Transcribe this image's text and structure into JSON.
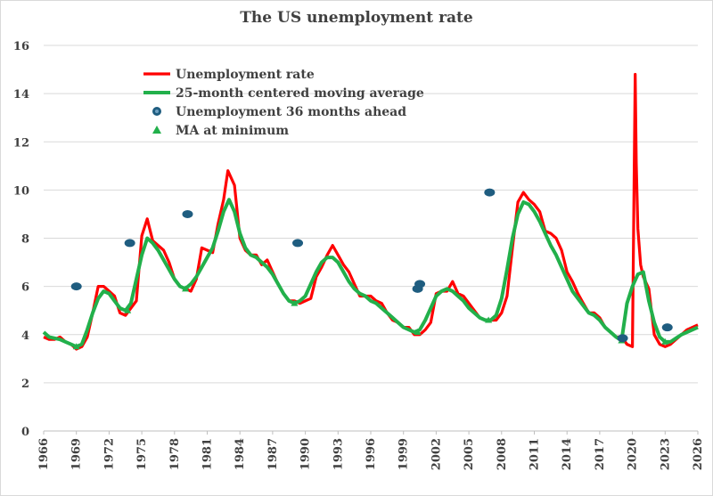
{
  "chart_data": {
    "type": "line",
    "title": "The US unemployment rate",
    "xlabel": "",
    "ylabel": "",
    "xlim": [
      1966,
      2026
    ],
    "ylim": [
      0,
      16
    ],
    "y_ticks": [
      0,
      2,
      4,
      6,
      8,
      10,
      12,
      14,
      16
    ],
    "x_ticks": [
      1966,
      1969,
      1972,
      1975,
      1978,
      1981,
      1984,
      1987,
      1990,
      1993,
      1996,
      1999,
      2002,
      2005,
      2008,
      2011,
      2014,
      2017,
      2020,
      2023,
      2026
    ],
    "grid": "horizontal",
    "legend_position": "top-left",
    "colors": {
      "unemployment": "#ff0000",
      "moving_average": "#22b04b",
      "ahead": "#1f5d80",
      "ma_min": "#22b04b"
    },
    "series": [
      {
        "name": "Unemployment rate",
        "kind": "line",
        "x": [
          1966.0,
          1966.5,
          1967.0,
          1967.5,
          1968.0,
          1968.5,
          1969.0,
          1969.5,
          1970.0,
          1970.5,
          1971.0,
          1971.5,
          1972.0,
          1972.5,
          1973.0,
          1973.5,
          1974.0,
          1974.5,
          1975.0,
          1975.5,
          1976.0,
          1976.5,
          1977.0,
          1977.5,
          1978.0,
          1978.5,
          1979.0,
          1979.5,
          1980.0,
          1980.5,
          1981.0,
          1981.5,
          1982.0,
          1982.5,
          1982.9,
          1983.5,
          1984.0,
          1984.5,
          1985.0,
          1985.5,
          1986.0,
          1986.5,
          1987.0,
          1987.5,
          1988.0,
          1988.5,
          1989.0,
          1989.5,
          1990.0,
          1990.5,
          1991.0,
          1991.5,
          1992.0,
          1992.5,
          1993.0,
          1993.5,
          1994.0,
          1994.5,
          1995.0,
          1995.5,
          1996.0,
          1996.5,
          1997.0,
          1997.5,
          1998.0,
          1998.5,
          1999.0,
          1999.5,
          2000.0,
          2000.5,
          2001.0,
          2001.5,
          2002.0,
          2002.5,
          2003.0,
          2003.5,
          2004.0,
          2004.5,
          2005.0,
          2005.5,
          2006.0,
          2006.5,
          2007.0,
          2007.5,
          2008.0,
          2008.5,
          2009.0,
          2009.5,
          2010.0,
          2010.5,
          2011.0,
          2011.5,
          2012.0,
          2012.5,
          2013.0,
          2013.5,
          2014.0,
          2014.5,
          2015.0,
          2015.5,
          2016.0,
          2016.5,
          2017.0,
          2017.5,
          2018.0,
          2018.5,
          2019.0,
          2019.5,
          2020.0,
          2020.25,
          2020.35,
          2020.5,
          2020.75,
          2021.0,
          2021.5,
          2022.0,
          2022.5,
          2023.0,
          2023.5,
          2024.0,
          2024.5,
          2025.0,
          2025.5,
          2026.0
        ],
        "values": [
          3.9,
          3.8,
          3.8,
          3.9,
          3.7,
          3.6,
          3.4,
          3.5,
          3.9,
          4.9,
          6.0,
          6.0,
          5.8,
          5.6,
          4.9,
          4.8,
          5.1,
          5.4,
          8.1,
          8.8,
          7.9,
          7.7,
          7.5,
          7.0,
          6.3,
          6.0,
          5.9,
          5.8,
          6.3,
          7.6,
          7.5,
          7.4,
          8.6,
          9.6,
          10.8,
          10.2,
          8.0,
          7.5,
          7.3,
          7.3,
          6.9,
          7.1,
          6.6,
          6.1,
          5.7,
          5.4,
          5.4,
          5.3,
          5.4,
          5.5,
          6.4,
          6.8,
          7.3,
          7.7,
          7.3,
          6.9,
          6.6,
          6.1,
          5.6,
          5.6,
          5.6,
          5.4,
          5.3,
          4.9,
          4.6,
          4.5,
          4.3,
          4.3,
          4.0,
          4.0,
          4.2,
          4.5,
          5.7,
          5.8,
          5.8,
          6.2,
          5.7,
          5.6,
          5.3,
          5.0,
          4.7,
          4.6,
          4.6,
          4.6,
          4.9,
          5.6,
          7.6,
          9.5,
          9.9,
          9.6,
          9.4,
          9.1,
          8.3,
          8.2,
          8.0,
          7.5,
          6.6,
          6.2,
          5.7,
          5.3,
          4.9,
          4.9,
          4.7,
          4.3,
          4.1,
          3.9,
          3.9,
          3.6,
          3.5,
          14.8,
          11.1,
          8.4,
          6.9,
          6.4,
          5.9,
          4.0,
          3.6,
          3.5,
          3.6,
          3.8,
          4.0,
          4.2,
          4.3,
          4.4
        ]
      },
      {
        "name": "25-month centered moving average",
        "kind": "line",
        "x": [
          1966.0,
          1966.5,
          1967.0,
          1967.5,
          1968.0,
          1968.5,
          1969.0,
          1969.5,
          1970.0,
          1970.5,
          1971.0,
          1971.5,
          1972.0,
          1972.5,
          1973.0,
          1973.5,
          1974.0,
          1974.5,
          1975.0,
          1975.5,
          1976.0,
          1976.5,
          1977.0,
          1977.5,
          1978.0,
          1978.5,
          1979.0,
          1979.5,
          1980.0,
          1980.5,
          1981.0,
          1981.5,
          1982.0,
          1982.5,
          1983.0,
          1983.5,
          1984.0,
          1984.5,
          1985.0,
          1985.5,
          1986.0,
          1986.5,
          1987.0,
          1987.5,
          1988.0,
          1988.5,
          1989.0,
          1989.5,
          1990.0,
          1990.5,
          1991.0,
          1991.5,
          1992.0,
          1992.5,
          1993.0,
          1993.5,
          1994.0,
          1994.5,
          1995.0,
          1995.5,
          1996.0,
          1996.5,
          1997.0,
          1997.5,
          1998.0,
          1998.5,
          1999.0,
          1999.5,
          2000.0,
          2000.5,
          2001.0,
          2001.5,
          2002.0,
          2002.5,
          2003.0,
          2003.5,
          2004.0,
          2004.5,
          2005.0,
          2005.5,
          2006.0,
          2006.5,
          2007.0,
          2007.5,
          2008.0,
          2008.5,
          2009.0,
          2009.5,
          2010.0,
          2010.5,
          2011.0,
          2011.5,
          2012.0,
          2012.5,
          2013.0,
          2013.5,
          2014.0,
          2014.5,
          2015.0,
          2015.5,
          2016.0,
          2016.5,
          2017.0,
          2017.5,
          2018.0,
          2018.5,
          2019.0,
          2019.5,
          2020.0,
          2020.5,
          2021.0,
          2021.5,
          2022.0,
          2022.5,
          2023.0,
          2023.5,
          2024.0,
          2024.5,
          2025.0,
          2025.5,
          2026.0
        ],
        "values": [
          4.1,
          3.9,
          3.85,
          3.8,
          3.7,
          3.6,
          3.5,
          3.6,
          4.2,
          4.9,
          5.5,
          5.8,
          5.7,
          5.4,
          5.1,
          5.0,
          5.3,
          6.3,
          7.3,
          8.0,
          7.8,
          7.5,
          7.1,
          6.7,
          6.3,
          6.0,
          5.9,
          6.1,
          6.4,
          6.8,
          7.2,
          7.6,
          8.3,
          9.1,
          9.6,
          9.1,
          8.2,
          7.6,
          7.3,
          7.2,
          7.0,
          6.8,
          6.5,
          6.1,
          5.7,
          5.4,
          5.3,
          5.4,
          5.6,
          6.1,
          6.6,
          7.0,
          7.2,
          7.2,
          7.0,
          6.6,
          6.2,
          5.9,
          5.7,
          5.6,
          5.4,
          5.3,
          5.1,
          4.9,
          4.7,
          4.5,
          4.3,
          4.2,
          4.1,
          4.2,
          4.6,
          5.1,
          5.6,
          5.8,
          5.9,
          5.8,
          5.6,
          5.4,
          5.1,
          4.9,
          4.7,
          4.6,
          4.6,
          4.8,
          5.5,
          6.7,
          8.0,
          9.0,
          9.5,
          9.4,
          9.1,
          8.7,
          8.2,
          7.7,
          7.3,
          6.8,
          6.3,
          5.8,
          5.5,
          5.2,
          4.9,
          4.8,
          4.6,
          4.3,
          4.1,
          3.9,
          3.75,
          5.3,
          6.0,
          6.5,
          6.6,
          5.4,
          4.5,
          3.9,
          3.7,
          3.7,
          3.85,
          4.0,
          4.1,
          4.2,
          4.3
        ]
      },
      {
        "name": "Unemployment 36 months ahead",
        "kind": "scatter",
        "points": [
          [
            1969.0,
            6.0
          ],
          [
            1973.9,
            7.8
          ],
          [
            1979.2,
            9.0
          ],
          [
            1989.3,
            7.8
          ],
          [
            2000.3,
            5.9
          ],
          [
            2000.5,
            6.1
          ],
          [
            2006.9,
            9.9
          ],
          [
            2019.1,
            3.85
          ],
          [
            2023.2,
            4.3
          ]
        ]
      },
      {
        "name": "MA at minimum",
        "kind": "scatter",
        "points": [
          [
            1969.0,
            3.5
          ],
          [
            1973.7,
            5.0
          ],
          [
            1979.0,
            5.9
          ],
          [
            1989.0,
            5.3
          ],
          [
            2000.3,
            4.1
          ],
          [
            2006.8,
            4.6
          ],
          [
            2019.0,
            3.75
          ],
          [
            2023.0,
            3.7
          ]
        ]
      }
    ]
  }
}
